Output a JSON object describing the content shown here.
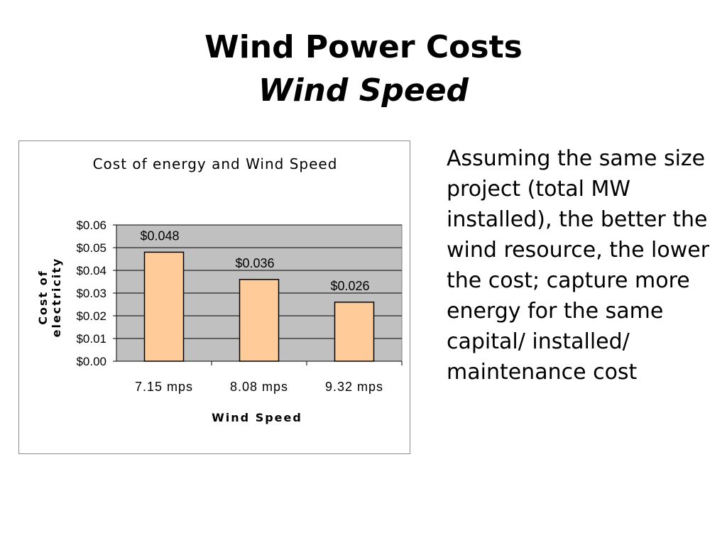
{
  "slide": {
    "title": "Wind Power Costs",
    "subtitle": "Wind Speed",
    "body_text": "Assuming the same size project (total MW installed), the better the wind resource, the lower the cost; capture more energy for the same capital/ installed/ maintenance cost"
  },
  "chart_data": {
    "type": "bar",
    "title": "Cost of energy and Wind Speed",
    "xlabel": "Wind Speed",
    "ylabel": "Cost of electricity",
    "categories": [
      "7.15 mps",
      "8.08 mps",
      "9.32 mps"
    ],
    "values": [
      0.048,
      0.036,
      0.026
    ],
    "data_labels": [
      "$0.048",
      "$0.036",
      "$0.026"
    ],
    "y_ticks": [
      0,
      0.01,
      0.02,
      0.03,
      0.04,
      0.05,
      0.06
    ],
    "y_tick_labels": [
      "$0.00",
      "$0.01",
      "$0.02",
      "$0.03",
      "$0.04",
      "$0.05",
      "$0.06"
    ],
    "ylim": [
      0,
      0.06
    ],
    "grid": true,
    "legend": "none",
    "colors": {
      "bar_fill": "#FFCC99",
      "bar_stroke": "#000000",
      "plot_background": "#C0C0C0",
      "gridline": "#000000"
    }
  }
}
